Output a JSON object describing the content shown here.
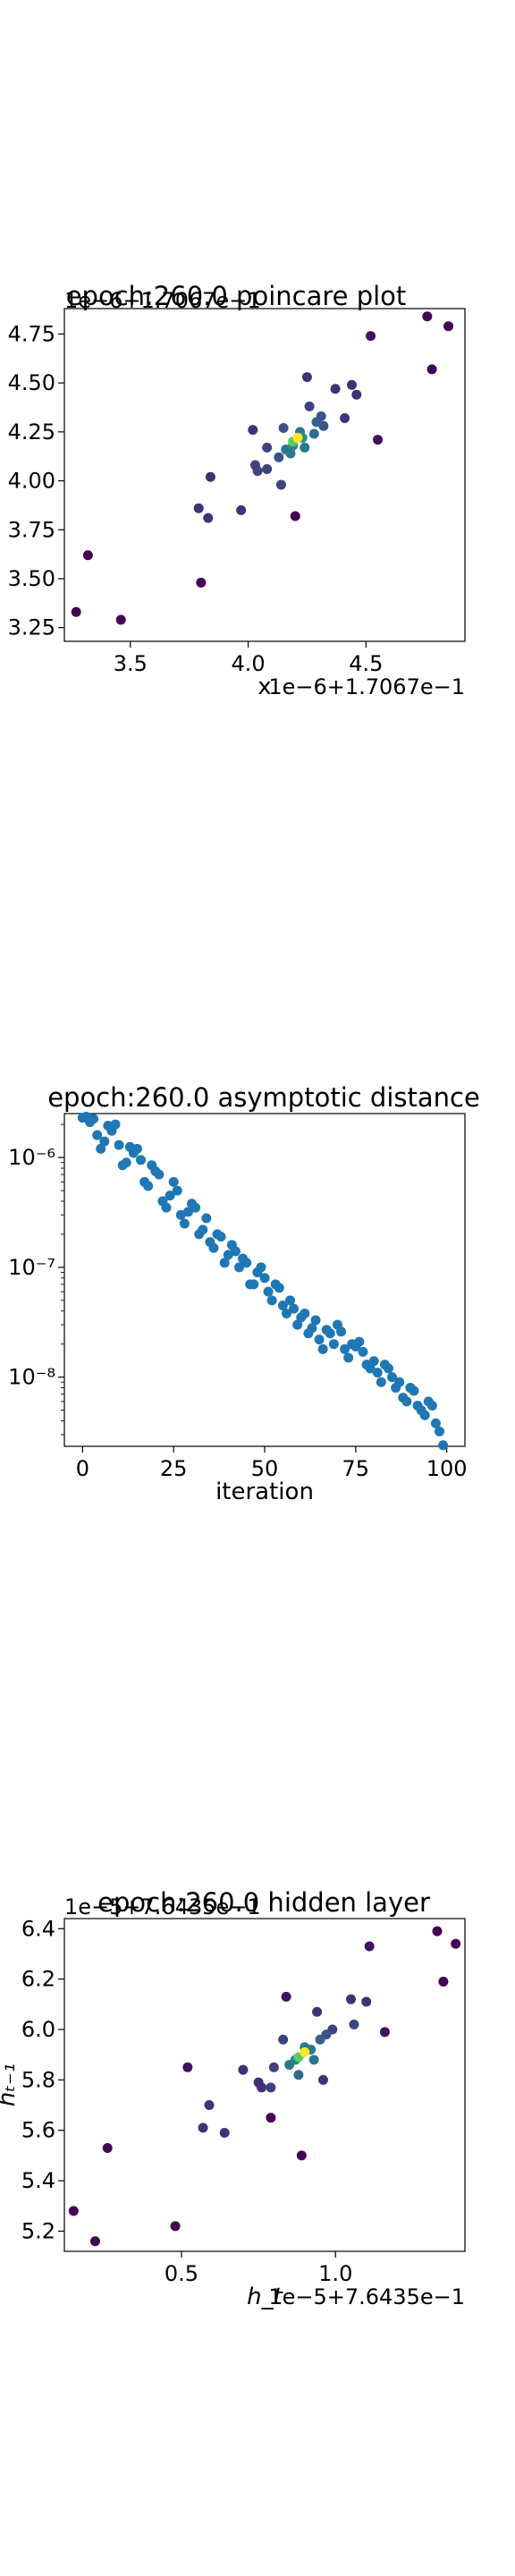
{
  "chart_data": [
    {
      "type": "scatter",
      "title": "epoch:260.0 poincare plot",
      "xlabel": "x",
      "ylabel": "",
      "x_offset_label": "1e−6+1.7067e−1",
      "y_offset_label": "1e−6+1.7067e−1",
      "xlim": [
        3.22,
        4.92
      ],
      "ylim": [
        3.18,
        4.88
      ],
      "x_ticks": [
        3.5,
        4.0,
        4.5
      ],
      "x_tick_labels": [
        "3.5",
        "4.0",
        "4.5"
      ],
      "y_ticks": [
        3.25,
        3.5,
        3.75,
        4.0,
        4.25,
        4.5,
        4.75
      ],
      "y_tick_labels": [
        "3.25",
        "3.50",
        "3.75",
        "4.00",
        "4.25",
        "4.50",
        "4.75"
      ],
      "colormap": "viridis",
      "points": [
        {
          "x": 3.27,
          "y": 3.33,
          "c": 0.0
        },
        {
          "x": 3.32,
          "y": 3.62,
          "c": 0.0
        },
        {
          "x": 3.46,
          "y": 3.29,
          "c": 0.0
        },
        {
          "x": 3.8,
          "y": 3.48,
          "c": 0.0
        },
        {
          "x": 3.79,
          "y": 3.86,
          "c": 0.15
        },
        {
          "x": 3.83,
          "y": 3.81,
          "c": 0.15
        },
        {
          "x": 3.84,
          "y": 4.02,
          "c": 0.15
        },
        {
          "x": 3.97,
          "y": 3.85,
          "c": 0.15
        },
        {
          "x": 4.02,
          "y": 4.26,
          "c": 0.15
        },
        {
          "x": 4.03,
          "y": 4.08,
          "c": 0.2
        },
        {
          "x": 4.04,
          "y": 4.05,
          "c": 0.2
        },
        {
          "x": 4.08,
          "y": 4.06,
          "c": 0.2
        },
        {
          "x": 4.08,
          "y": 4.17,
          "c": 0.2
        },
        {
          "x": 4.14,
          "y": 3.98,
          "c": 0.2
        },
        {
          "x": 4.13,
          "y": 4.12,
          "c": 0.25
        },
        {
          "x": 4.15,
          "y": 4.27,
          "c": 0.25
        },
        {
          "x": 4.16,
          "y": 4.16,
          "c": 0.4
        },
        {
          "x": 4.18,
          "y": 4.14,
          "c": 0.4
        },
        {
          "x": 4.19,
          "y": 4.18,
          "c": 0.45
        },
        {
          "x": 4.2,
          "y": 3.82,
          "c": 0.0
        },
        {
          "x": 4.22,
          "y": 4.25,
          "c": 0.4
        },
        {
          "x": 4.23,
          "y": 4.22,
          "c": 0.5
        },
        {
          "x": 4.24,
          "y": 4.17,
          "c": 0.4
        },
        {
          "x": 4.25,
          "y": 4.53,
          "c": 0.15
        },
        {
          "x": 4.26,
          "y": 4.38,
          "c": 0.2
        },
        {
          "x": 4.28,
          "y": 4.24,
          "c": 0.35
        },
        {
          "x": 4.29,
          "y": 4.3,
          "c": 0.3
        },
        {
          "x": 4.31,
          "y": 4.33,
          "c": 0.25
        },
        {
          "x": 4.32,
          "y": 4.28,
          "c": 0.25
        },
        {
          "x": 4.37,
          "y": 4.47,
          "c": 0.15
        },
        {
          "x": 4.41,
          "y": 4.32,
          "c": 0.15
        },
        {
          "x": 4.44,
          "y": 4.49,
          "c": 0.15
        },
        {
          "x": 4.46,
          "y": 4.44,
          "c": 0.15
        },
        {
          "x": 4.52,
          "y": 4.74,
          "c": 0.05
        },
        {
          "x": 4.55,
          "y": 4.21,
          "c": 0.05
        },
        {
          "x": 4.76,
          "y": 4.84,
          "c": 0.0
        },
        {
          "x": 4.78,
          "y": 4.57,
          "c": 0.0
        },
        {
          "x": 4.85,
          "y": 4.79,
          "c": 0.0
        },
        {
          "x": 4.19,
          "y": 4.2,
          "c": 0.75
        },
        {
          "x": 4.21,
          "y": 4.22,
          "c": 1.0
        }
      ]
    },
    {
      "type": "scatter",
      "title": "epoch:260.0 asymptotic distance",
      "xlabel": "iteration",
      "ylabel": "",
      "xlim": [
        -5,
        105
      ],
      "ylim_log10": [
        -8.63,
        -5.6
      ],
      "yscale": "log",
      "x_ticks": [
        0,
        25,
        50,
        75,
        100
      ],
      "x_tick_labels": [
        "0",
        "25",
        "50",
        "75",
        "100"
      ],
      "y_ticks_log10": [
        -8,
        -7,
        -6
      ],
      "y_tick_labels": [
        "10⁻⁸",
        "10⁻⁷",
        "10⁻⁶"
      ],
      "color": "#1f77b4",
      "x": [
        0,
        1,
        2,
        3,
        4,
        5,
        6,
        7,
        8,
        9,
        10,
        11,
        12,
        13,
        14,
        15,
        16,
        17,
        18,
        19,
        20,
        21,
        22,
        23,
        24,
        25,
        26,
        27,
        28,
        29,
        30,
        31,
        32,
        33,
        34,
        35,
        36,
        37,
        38,
        39,
        40,
        41,
        42,
        43,
        44,
        45,
        46,
        47,
        48,
        49,
        50,
        51,
        52,
        53,
        54,
        55,
        56,
        57,
        58,
        59,
        60,
        61,
        62,
        63,
        64,
        65,
        66,
        67,
        68,
        69,
        70,
        71,
        72,
        73,
        74,
        75,
        76,
        77,
        78,
        79,
        80,
        81,
        82,
        83,
        84,
        85,
        86,
        87,
        88,
        89,
        90,
        91,
        92,
        93,
        94,
        95,
        96,
        97,
        98,
        99
      ],
      "y": [
        2.3e-06,
        2.35e-06,
        2.1e-06,
        2.25e-06,
        1.6e-06,
        1.2e-06,
        1.4e-06,
        1.95e-06,
        1.75e-06,
        2e-06,
        1.3e-06,
        8.5e-07,
        9e-07,
        1.25e-06,
        1.1e-06,
        1.2e-06,
        9.5e-07,
        6e-07,
        5.5e-07,
        8.5e-07,
        7.5e-07,
        7e-07,
        4e-07,
        3.5e-07,
        4.5e-07,
        6e-07,
        5e-07,
        3e-07,
        2.5e-07,
        3.2e-07,
        3.8e-07,
        3.5e-07,
        2e-07,
        2.2e-07,
        2.8e-07,
        1.7e-07,
        1.5e-07,
        2e-07,
        1.9e-07,
        1.1e-07,
        1.3e-07,
        1.6e-07,
        1.4e-07,
        1e-07,
        1.2e-07,
        1.1e-07,
        7e-08,
        7e-08,
        9e-08,
        1e-07,
        8e-08,
        6e-08,
        5e-08,
        7e-08,
        6.5e-08,
        4.5e-08,
        3.8e-08,
        5e-08,
        4.2e-08,
        3e-08,
        3.5e-08,
        3.8e-08,
        2.5e-08,
        2.8e-08,
        3.3e-08,
        2.2e-08,
        1.8e-08,
        2.7e-08,
        2.5e-08,
        2e-08,
        3e-08,
        2.6e-08,
        1.8e-08,
        1.5e-08,
        2e-08,
        1.9e-08,
        2.1e-08,
        1.7e-08,
        1.3e-08,
        1.2e-08,
        1.4e-08,
        1.1e-08,
        9e-09,
        1.3e-08,
        1.2e-08,
        1e-08,
        8e-09,
        9e-09,
        6.5e-09,
        6e-09,
        8e-09,
        7.5e-09,
        5.5e-09,
        5e-09,
        4.5e-09,
        6e-09,
        5.5e-09,
        3.8e-09,
        3.2e-09,
        2.4e-09
      ]
    },
    {
      "type": "scatter",
      "title": "epoch:260.0 hidden layer",
      "xlabel": "h_t",
      "ylabel": "h_{t−1}",
      "xlabel_display": "h_t",
      "ylabel_display": "hₜ₋₁",
      "x_offset_label": "1e−5+7.6435e−1",
      "y_offset_label": "1e−5+7.6435e−1",
      "xlim": [
        0.12,
        1.42
      ],
      "ylim": [
        5.12,
        6.44
      ],
      "x_ticks": [
        0.5,
        1.0
      ],
      "x_tick_labels": [
        "0.5",
        "1.0"
      ],
      "y_ticks": [
        5.2,
        5.4,
        5.6,
        5.8,
        6.0,
        6.2,
        6.4
      ],
      "y_tick_labels": [
        "5.2",
        "5.4",
        "5.6",
        "5.8",
        "6.0",
        "6.2",
        "6.4"
      ],
      "colormap": "viridis",
      "points": [
        {
          "x": 0.15,
          "y": 5.28,
          "c": 0.0
        },
        {
          "x": 0.22,
          "y": 5.16,
          "c": 0.0
        },
        {
          "x": 0.26,
          "y": 5.53,
          "c": 0.0
        },
        {
          "x": 0.48,
          "y": 5.22,
          "c": 0.0
        },
        {
          "x": 0.52,
          "y": 5.85,
          "c": 0.05
        },
        {
          "x": 0.57,
          "y": 5.61,
          "c": 0.15
        },
        {
          "x": 0.59,
          "y": 5.7,
          "c": 0.15
        },
        {
          "x": 0.64,
          "y": 5.59,
          "c": 0.15
        },
        {
          "x": 0.7,
          "y": 5.84,
          "c": 0.15
        },
        {
          "x": 0.75,
          "y": 5.79,
          "c": 0.15
        },
        {
          "x": 0.76,
          "y": 5.77,
          "c": 0.15
        },
        {
          "x": 0.79,
          "y": 5.77,
          "c": 0.2
        },
        {
          "x": 0.79,
          "y": 5.65,
          "c": 0.0
        },
        {
          "x": 0.8,
          "y": 5.85,
          "c": 0.2
        },
        {
          "x": 0.83,
          "y": 5.96,
          "c": 0.2
        },
        {
          "x": 0.84,
          "y": 6.13,
          "c": 0.05
        },
        {
          "x": 0.85,
          "y": 5.86,
          "c": 0.4
        },
        {
          "x": 0.87,
          "y": 5.88,
          "c": 0.45
        },
        {
          "x": 0.88,
          "y": 5.82,
          "c": 0.35
        },
        {
          "x": 0.89,
          "y": 5.5,
          "c": 0.0
        },
        {
          "x": 0.9,
          "y": 5.93,
          "c": 0.4
        },
        {
          "x": 0.92,
          "y": 5.92,
          "c": 0.4
        },
        {
          "x": 0.93,
          "y": 5.88,
          "c": 0.4
        },
        {
          "x": 0.94,
          "y": 6.07,
          "c": 0.15
        },
        {
          "x": 0.95,
          "y": 5.96,
          "c": 0.3
        },
        {
          "x": 0.96,
          "y": 5.8,
          "c": 0.15
        },
        {
          "x": 0.97,
          "y": 5.98,
          "c": 0.25
        },
        {
          "x": 0.99,
          "y": 6.0,
          "c": 0.2
        },
        {
          "x": 1.05,
          "y": 6.12,
          "c": 0.15
        },
        {
          "x": 1.1,
          "y": 6.11,
          "c": 0.15
        },
        {
          "x": 1.11,
          "y": 6.33,
          "c": 0.05
        },
        {
          "x": 1.16,
          "y": 5.99,
          "c": 0.05
        },
        {
          "x": 1.33,
          "y": 6.39,
          "c": 0.0
        },
        {
          "x": 1.35,
          "y": 6.19,
          "c": 0.0
        },
        {
          "x": 1.39,
          "y": 6.34,
          "c": 0.0
        },
        {
          "x": 1.06,
          "y": 6.02,
          "c": 0.2
        },
        {
          "x": 0.88,
          "y": 5.89,
          "c": 0.75
        },
        {
          "x": 0.9,
          "y": 5.91,
          "c": 1.0
        }
      ]
    }
  ]
}
